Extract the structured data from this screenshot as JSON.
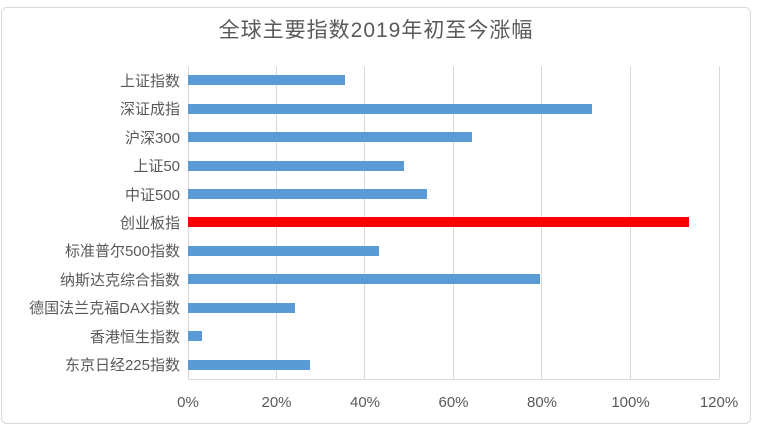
{
  "page": {
    "title": "全球主要指数2019年初至今涨幅"
  },
  "chart_data": {
    "type": "bar",
    "orientation": "horizontal",
    "title": "全球主要指数2019年初至今涨幅",
    "categories": [
      "上证指数",
      "深证成指",
      "沪深300",
      "上证50",
      "中证500",
      "创业板指",
      "标准普尔500指数",
      "纳斯达克综合指数",
      "德国法兰克福DAX指数",
      "香港恒生指数",
      "东京日经225指数"
    ],
    "values": [
      35.4,
      91.3,
      64.2,
      48.9,
      53.9,
      113.2,
      43.2,
      79.5,
      24.1,
      3.1,
      27.6
    ],
    "unit": "%",
    "xlim": [
      0,
      120
    ],
    "x_ticks": [
      "0%",
      "20%",
      "40%",
      "60%",
      "80%",
      "100%",
      "120%"
    ],
    "x_tick_values": [
      0,
      20,
      40,
      60,
      80,
      100,
      120
    ],
    "grid": "vertical-gridlines",
    "legend": "none",
    "bar_color": "#5B9BD5",
    "highlight_color": "#FF0000",
    "highlight_index": 5,
    "text_color": "#595959",
    "grid_color": "#D9D9D9",
    "background_color": "#FFFFFF",
    "border_color": "#D9D9D9"
  }
}
